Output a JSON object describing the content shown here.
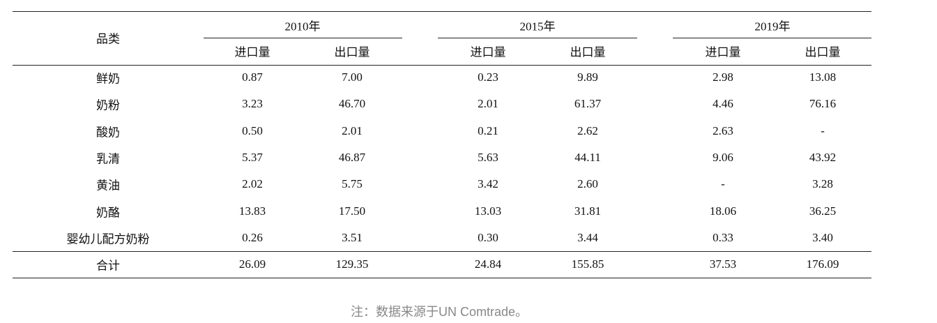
{
  "table": {
    "header": {
      "category": "品类",
      "years": [
        "2010年",
        "2015年",
        "2019年"
      ],
      "subheaders": [
        "进口量",
        "出口量"
      ]
    },
    "rows": [
      [
        "鲜奶",
        "0.87",
        "7.00",
        "0.23",
        "9.89",
        "2.98",
        "13.08"
      ],
      [
        "奶粉",
        "3.23",
        "46.70",
        "2.01",
        "61.37",
        "4.46",
        "76.16"
      ],
      [
        "酸奶",
        "0.50",
        "2.01",
        "0.21",
        "2.62",
        "2.63",
        "-"
      ],
      [
        "乳清",
        "5.37",
        "46.87",
        "5.63",
        "44.11",
        "9.06",
        "43.92"
      ],
      [
        "黄油",
        "2.02",
        "5.75",
        "3.42",
        "2.60",
        "-",
        "3.28"
      ],
      [
        "奶酪",
        "13.83",
        "17.50",
        "13.03",
        "31.81",
        "18.06",
        "36.25"
      ],
      [
        "婴幼儿配方奶粉",
        "0.26",
        "3.51",
        "0.30",
        "3.44",
        "0.33",
        "3.40"
      ]
    ],
    "total": [
      "合计",
      "26.09",
      "129.35",
      "24.84",
      "155.85",
      "37.53",
      "176.09"
    ]
  },
  "note": "注：数据来源于UN Comtrade。"
}
